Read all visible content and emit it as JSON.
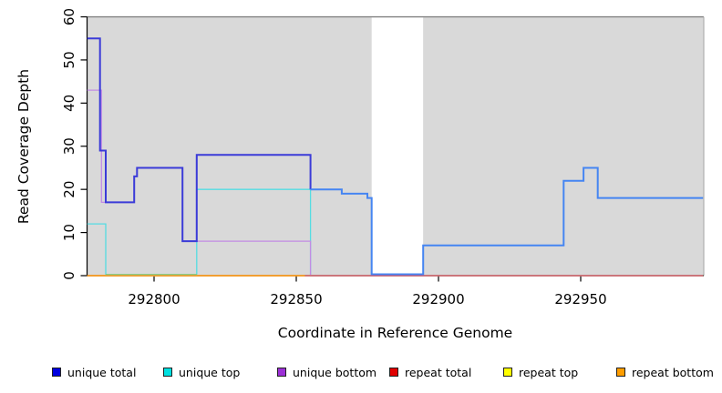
{
  "chart_data": {
    "type": "line",
    "subtype": "step-coverage-plot",
    "title": "",
    "xlabel": "Coordinate in Reference Genome",
    "ylabel": "Read Coverage Depth",
    "x_range": [
      292776.5,
      292993
    ],
    "y_range": [
      0,
      60
    ],
    "x_ticks": [
      292800,
      292850,
      292900,
      292950
    ],
    "x_tick_labels": [
      "292800",
      "292850",
      "292900",
      "292950"
    ],
    "y_ticks": [
      0,
      10,
      20,
      30,
      40,
      50,
      60
    ],
    "y_tick_labels": [
      "0",
      "10",
      "20",
      "30",
      "40",
      "50",
      "60"
    ],
    "grid": false,
    "plot_bg_color": "#d9d9d9",
    "gap_region": {
      "from": 292876.5,
      "to": 292894.6,
      "color": "#ffffff"
    },
    "series": [
      {
        "name": "unique top",
        "color": "#55dce2",
        "width": 1.3,
        "points": [
          [
            292776.5,
            12
          ],
          [
            292783,
            0
          ],
          [
            292815,
            20
          ],
          [
            292855,
            0
          ]
        ]
      },
      {
        "name": "unique bottom",
        "color": "#c28ce4",
        "width": 1.3,
        "points": [
          [
            292776.5,
            43
          ],
          [
            292781.5,
            17
          ],
          [
            292793,
            23
          ],
          [
            292794,
            25
          ],
          [
            292810,
            8
          ],
          [
            292855,
            0
          ]
        ]
      },
      {
        "name": "repeat top",
        "color": "#ffff00",
        "width": 1.2,
        "points": [
          [
            292776.5,
            0
          ]
        ]
      },
      {
        "name": "repeat total",
        "color": "#d64a6e",
        "width": 1.2,
        "points": [
          [
            292776.5,
            0
          ]
        ]
      },
      {
        "name": "repeat bottom",
        "color": "#ff9d1a",
        "width": 1.6,
        "draw_until": 292853,
        "points": [
          [
            292776.5,
            0
          ]
        ]
      },
      {
        "name": "unique total",
        "color": "#3b3bd8",
        "color_after": "#4585f2",
        "split_at": 292855,
        "width": 2,
        "zero_lift": 1.5,
        "points": [
          [
            292776.5,
            55
          ],
          [
            292781,
            29
          ],
          [
            292783,
            17
          ],
          [
            292793,
            23
          ],
          [
            292794,
            25
          ],
          [
            292810,
            8
          ],
          [
            292815,
            28
          ],
          [
            292855,
            20
          ],
          [
            292866,
            19
          ],
          [
            292875,
            18
          ],
          [
            292876.5,
            0
          ],
          [
            292894.6,
            7
          ],
          [
            292944,
            22
          ],
          [
            292951,
            25
          ],
          [
            292956,
            18
          ]
        ]
      }
    ],
    "artifact_line": {
      "from": 292783,
      "to": 292815,
      "value": 0,
      "color": "#7cc87f"
    }
  },
  "legend": {
    "items": [
      {
        "label": "unique total",
        "color": "#0000e0"
      },
      {
        "label": "unique top",
        "color": "#00e0e0"
      },
      {
        "label": "unique bottom",
        "color": "#9c2fd6"
      },
      {
        "label": "repeat total",
        "color": "#e00000"
      },
      {
        "label": "repeat top",
        "color": "#ffff00"
      },
      {
        "label": "repeat bottom",
        "color": "#ff9d00"
      }
    ]
  },
  "axes_colors": {
    "axis": "#000000",
    "top_border": "#7a7a7a",
    "right_border": "#b0b0b0"
  }
}
